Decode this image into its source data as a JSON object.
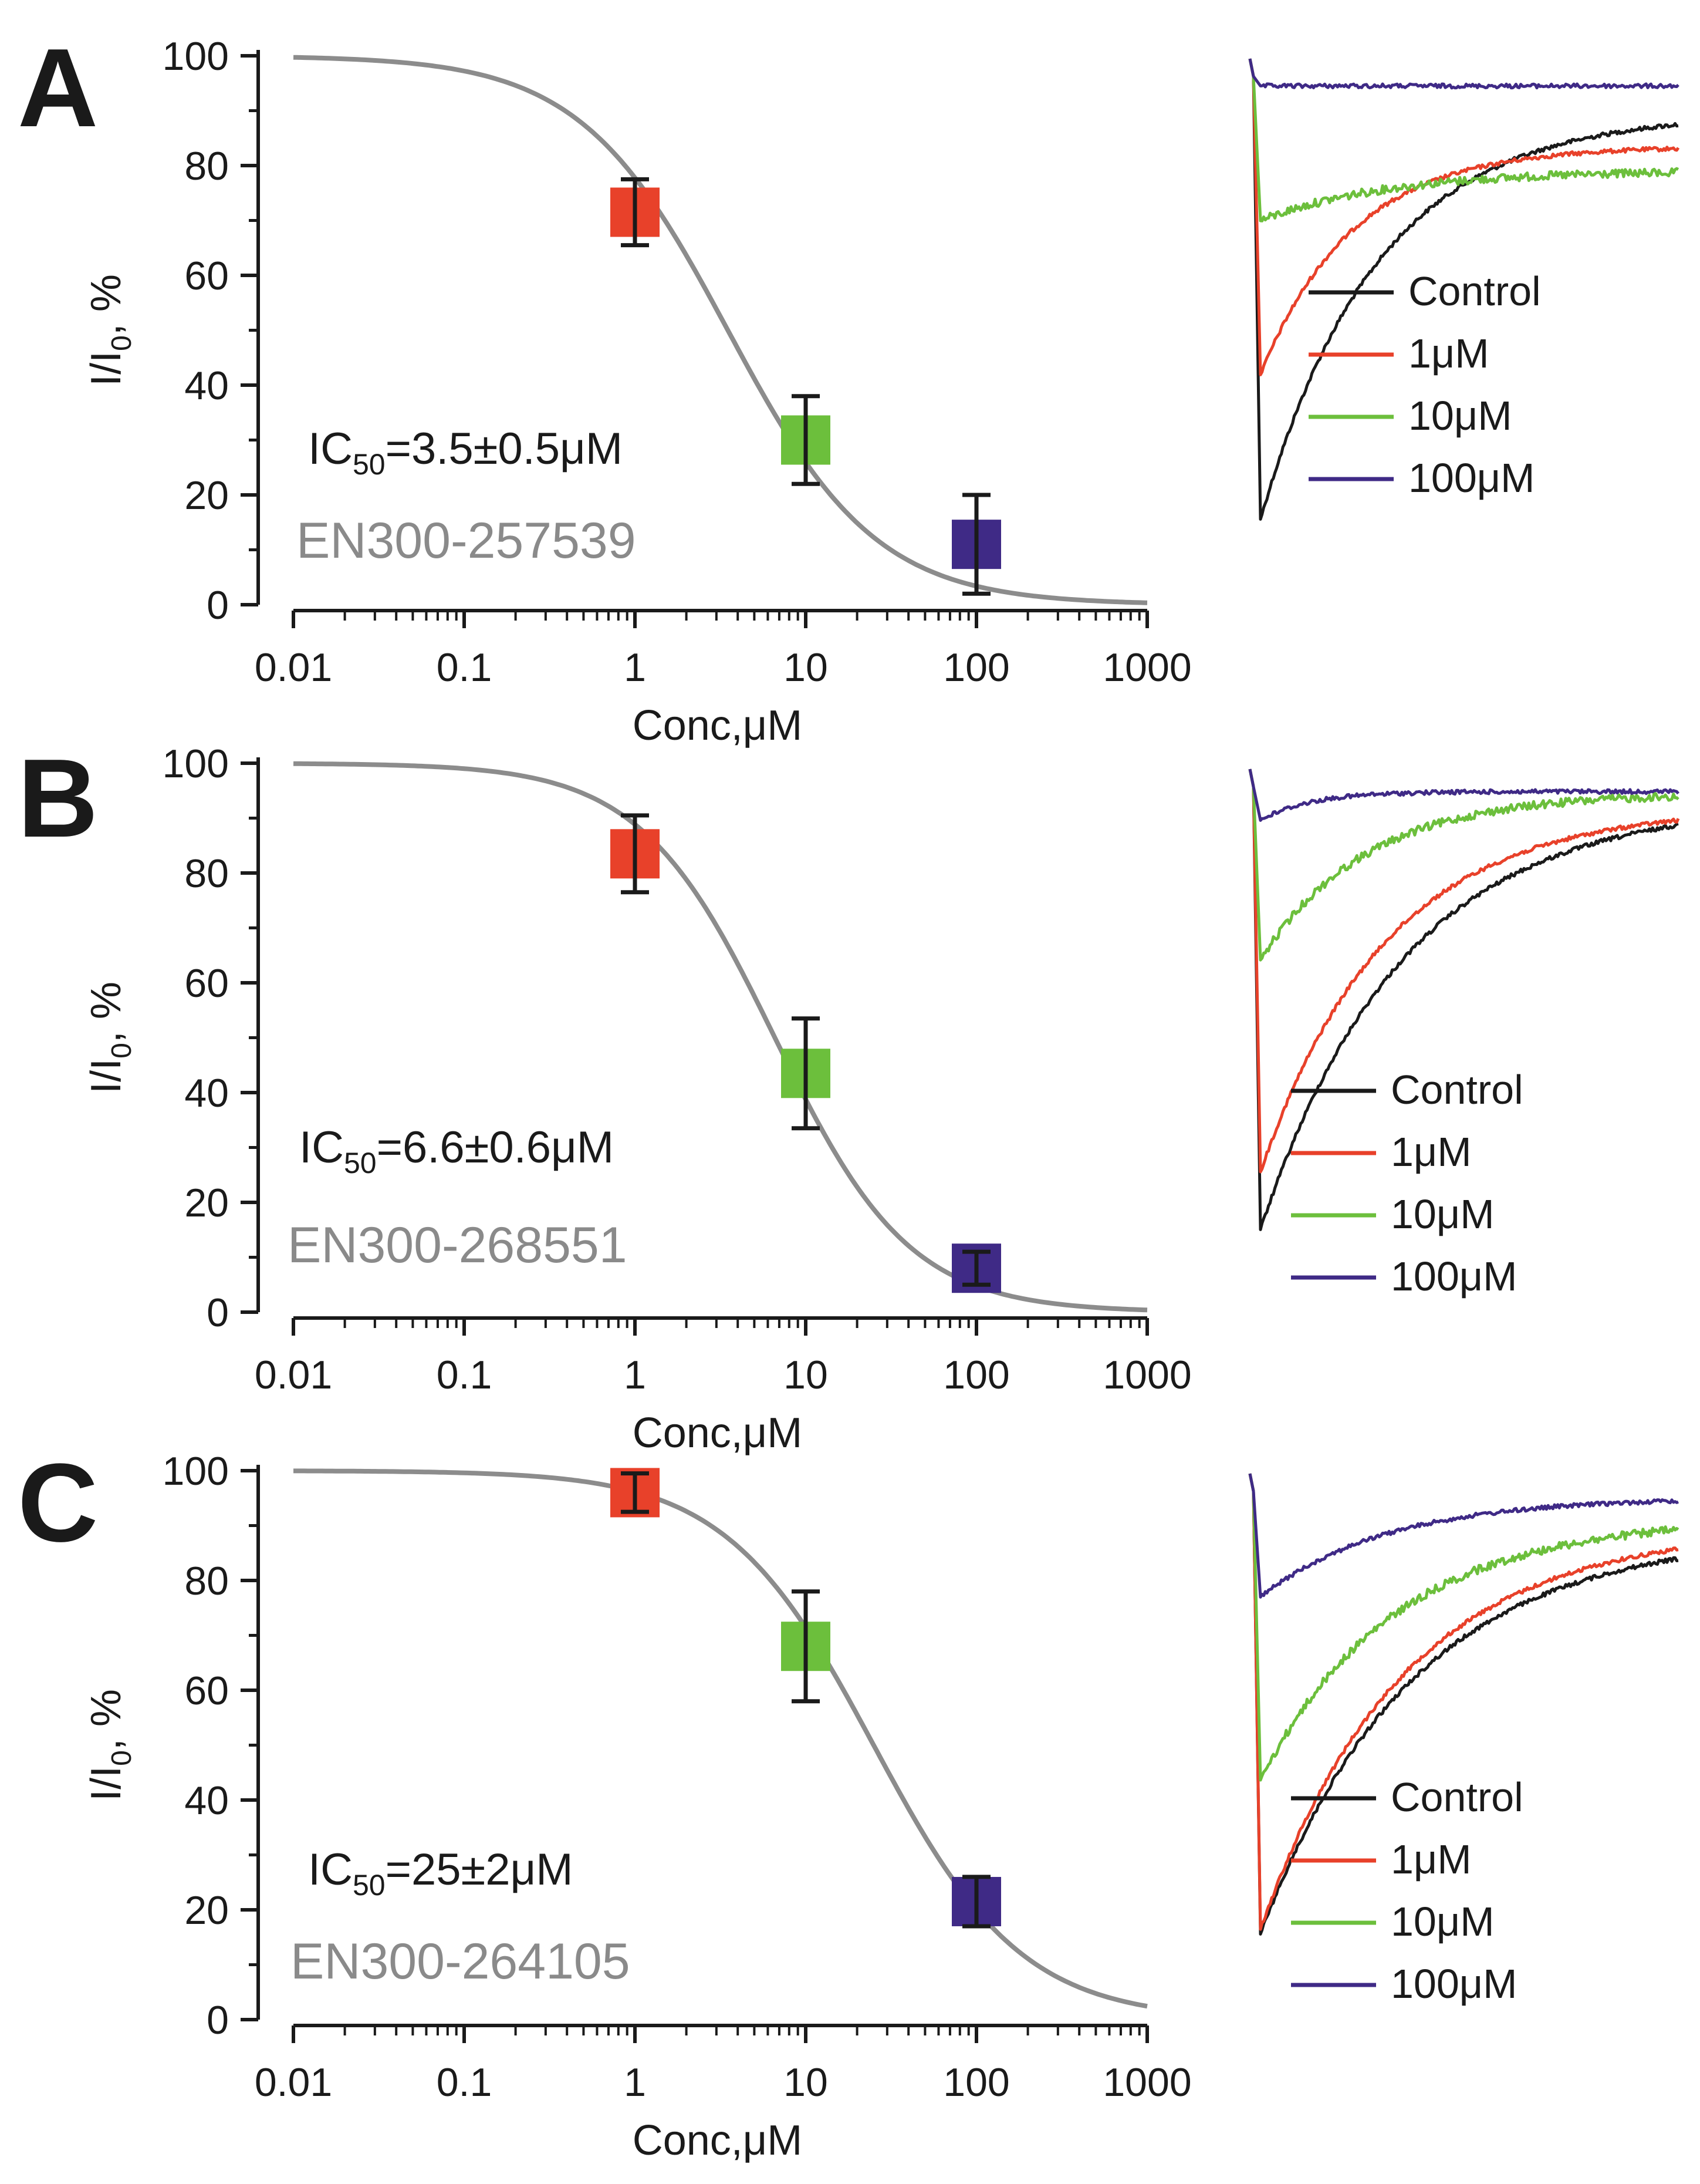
{
  "chart_data": [
    {
      "type": "scatter",
      "panel": "A",
      "xscale": "log",
      "xlim": [
        0.01,
        1000
      ],
      "ylim": [
        0,
        100
      ],
      "x_ticks": [
        "0.01",
        "0.1",
        "1",
        "10",
        "100",
        "1000"
      ],
      "y_ticks": [
        "0",
        "20",
        "40",
        "60",
        "80",
        "100"
      ],
      "xlabel": "Conc,μM",
      "ylabel_main": "I/I",
      "ylabel_sub": "0",
      "ylabel_tail": ", %",
      "ic50_label": "IC",
      "ic50_sub": "50",
      "ic50_value": "=3.5±0.5μM",
      "ic50": 3.5,
      "hill": 1.0,
      "compound": "EN300-257539",
      "points": [
        {
          "x": 1,
          "y": 71.5,
          "err": 6,
          "color": "#e8412a"
        },
        {
          "x": 10,
          "y": 30,
          "err": 8,
          "color": "#6cbf3c"
        },
        {
          "x": 100,
          "y": 11,
          "err": 9,
          "color": "#3f2a86"
        }
      ],
      "fit_color": "#8c8c8c",
      "legend": [
        {
          "label": "Control",
          "color": "#1a1a1a"
        },
        {
          "label": "1μM",
          "color": "#e8412a"
        },
        {
          "label": "10μM",
          "color": "#6cbf3c"
        },
        {
          "label": "100μM",
          "color": "#3f2a86"
        }
      ],
      "traces": [
        {
          "name": "Control",
          "color": "#1a1a1a",
          "peak": 0.92,
          "tau": 0.28,
          "end": 0.9
        },
        {
          "name": "1μM",
          "color": "#e8412a",
          "peak": 0.62,
          "tau": 0.22,
          "end": 0.85
        },
        {
          "name": "10μM",
          "color": "#6cbf3c",
          "peak": 0.3,
          "tau": 0.3,
          "end": 0.8
        },
        {
          "name": "100μM",
          "color": "#3f2a86",
          "peak": 0.02,
          "tau": 0.1,
          "end": 0.98
        }
      ]
    },
    {
      "type": "scatter",
      "panel": "B",
      "xscale": "log",
      "xlim": [
        0.01,
        1000
      ],
      "ylim": [
        0,
        100
      ],
      "x_ticks": [
        "0.01",
        "0.1",
        "1",
        "10",
        "100",
        "1000"
      ],
      "y_ticks": [
        "0",
        "20",
        "40",
        "60",
        "80",
        "100"
      ],
      "xlabel": "Conc,μM",
      "ylabel_main": "I/I",
      "ylabel_sub": "0",
      "ylabel_tail": ", %",
      "ic50_label": "IC",
      "ic50_sub": "50",
      "ic50_value": "=6.6±0.6μM",
      "ic50": 6.6,
      "hill": 1.1,
      "compound": "EN300-268551",
      "points": [
        {
          "x": 1,
          "y": 83.5,
          "err": 7,
          "color": "#e8412a"
        },
        {
          "x": 10,
          "y": 43.5,
          "err": 10,
          "color": "#6cbf3c"
        },
        {
          "x": 100,
          "y": 8,
          "err": 3,
          "color": "#3f2a86"
        }
      ],
      "fit_color": "#8c8c8c",
      "legend": [
        {
          "label": "Control",
          "color": "#1a1a1a"
        },
        {
          "label": "1μM",
          "color": "#e8412a"
        },
        {
          "label": "10μM",
          "color": "#6cbf3c"
        },
        {
          "label": "100μM",
          "color": "#3f2a86"
        }
      ],
      "traces": [
        {
          "name": "Control",
          "color": "#1a1a1a",
          "peak": 0.92,
          "tau": 0.34,
          "end": 0.92
        },
        {
          "name": "1μM",
          "color": "#e8412a",
          "peak": 0.8,
          "tau": 0.3,
          "end": 0.93
        },
        {
          "name": "10μM",
          "color": "#6cbf3c",
          "peak": 0.36,
          "tau": 0.25,
          "end": 0.98
        },
        {
          "name": "100μM",
          "color": "#3f2a86",
          "peak": 0.07,
          "tau": 0.12,
          "end": 0.99
        }
      ]
    },
    {
      "type": "scatter",
      "panel": "C",
      "xscale": "log",
      "xlim": [
        0.01,
        1000
      ],
      "ylim": [
        0,
        100
      ],
      "x_ticks": [
        "0.01",
        "0.1",
        "1",
        "10",
        "100",
        "1000"
      ],
      "y_ticks": [
        "0",
        "20",
        "40",
        "60",
        "80",
        "100"
      ],
      "xlabel": "Conc,μM",
      "ylabel_main": "I/I",
      "ylabel_sub": "0",
      "ylabel_tail": ", %",
      "ic50_label": "IC",
      "ic50_sub": "50",
      "ic50_value": "=25±2μM",
      "ic50": 25,
      "hill": 1.0,
      "compound": "EN300-264105",
      "points": [
        {
          "x": 1,
          "y": 96,
          "err": 3.5,
          "color": "#e8412a"
        },
        {
          "x": 10,
          "y": 68,
          "err": 10,
          "color": "#6cbf3c"
        },
        {
          "x": 100,
          "y": 21.5,
          "err": 4.5,
          "color": "#3f2a86"
        }
      ],
      "fit_color": "#8c8c8c",
      "legend": [
        {
          "label": "Control",
          "color": "#1a1a1a"
        },
        {
          "label": "1μM",
          "color": "#e8412a"
        },
        {
          "label": "10μM",
          "color": "#6cbf3c"
        },
        {
          "label": "100μM",
          "color": "#3f2a86"
        }
      ],
      "traces": [
        {
          "name": "Control",
          "color": "#1a1a1a",
          "peak": 0.92,
          "tau": 0.36,
          "end": 0.86
        },
        {
          "name": "1μM",
          "color": "#e8412a",
          "peak": 0.91,
          "tau": 0.34,
          "end": 0.88
        },
        {
          "name": "10μM",
          "color": "#6cbf3c",
          "peak": 0.6,
          "tau": 0.32,
          "end": 0.92
        },
        {
          "name": "100μM",
          "color": "#3f2a86",
          "peak": 0.22,
          "tau": 0.3,
          "end": 0.98
        }
      ]
    }
  ]
}
